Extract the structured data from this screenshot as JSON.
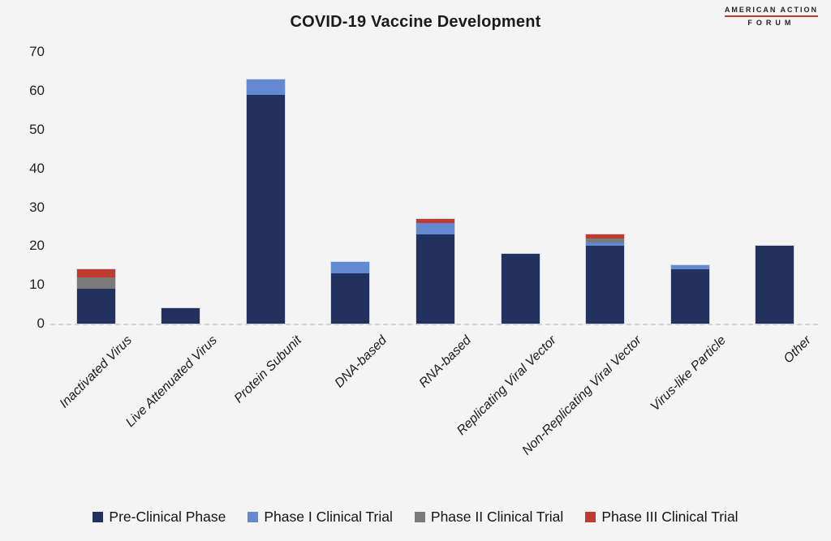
{
  "branding": {
    "logo_line1": "AMERICAN ACTION",
    "logo_line2": "FORUM",
    "accent_color": "#c23b2e"
  },
  "chart_data": {
    "type": "bar",
    "stacked": true,
    "title": "COVID-19 Vaccine Development",
    "categories": [
      "Inactivated Virus",
      "Live Attenuated Virus",
      "Protein Subunit",
      "DNA-based",
      "RNA-based",
      "Replicating Viral Vector",
      "Non-Replicating Viral Vector",
      "Virus-like Particle",
      "Other"
    ],
    "series": [
      {
        "name": "Pre-Clinical Phase",
        "color": "#22315e",
        "values": [
          9,
          4,
          59,
          13,
          23,
          18,
          20,
          14,
          20
        ]
      },
      {
        "name": "Phase I Clinical Trial",
        "color": "#6289d2",
        "values": [
          0,
          0,
          4,
          3,
          3,
          0,
          1,
          1,
          0
        ]
      },
      {
        "name": "Phase II Clinical Trial",
        "color": "#7a7a7a",
        "values": [
          3,
          0,
          0,
          0,
          0,
          0,
          1,
          0,
          0
        ]
      },
      {
        "name": "Phase III Clinical Trial",
        "color": "#c03a30",
        "values": [
          2,
          0,
          0,
          0,
          1,
          0,
          1,
          0,
          0
        ]
      }
    ],
    "totals": [
      14,
      4,
      63,
      16,
      27,
      18,
      23,
      15,
      20
    ],
    "ylim": [
      0,
      70
    ],
    "yticks": [
      0,
      10,
      20,
      30,
      40,
      50,
      60,
      70
    ],
    "xlabel": "",
    "ylabel": "",
    "grid": false,
    "legend_position": "bottom",
    "background_color": "#f4f4f5"
  }
}
